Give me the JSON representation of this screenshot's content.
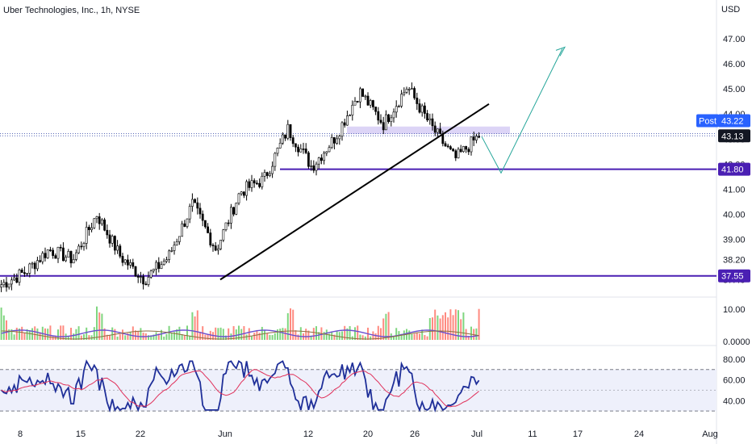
{
  "header": {
    "title": "Uber Technologies, Inc., 1h, NYSE",
    "currency": "USD"
  },
  "colors": {
    "up": "#26a69a",
    "down": "#ef5350",
    "level_line": "#4a1fb3",
    "zone": "#d6ccf5",
    "forecast": "#26a69a",
    "rsi": "#1f2f99",
    "rsi_ma": "#e0315b",
    "rsi_band": "#eef0fb",
    "price_label": "#131722",
    "post_label": "#2962ff"
  },
  "chart_data": [
    {
      "type": "candlestick",
      "title": "Uber Technologies, Inc., 1h, NYSE",
      "x_ticks": [
        "8",
        "15",
        "22",
        "Jun",
        "12",
        "20",
        "26",
        "Jul",
        "11",
        "17",
        "24",
        "Aug"
      ],
      "y_ticks": [
        "47.00",
        "46.00",
        "45.00",
        "44.00",
        "43.00",
        "42.00",
        "41.00",
        "40.00",
        "39.00",
        "38.20",
        "37.40"
      ],
      "ylim": [
        36.8,
        47.9
      ],
      "current_price": "43.13",
      "post_price": "43.22",
      "post_label": "Post",
      "levels": [
        {
          "name": "support",
          "value": 41.8,
          "label": "41.80"
        },
        {
          "name": "low-support",
          "value": 37.55,
          "label": "37.55"
        }
      ],
      "resistance_zone": [
        43.2,
        43.5
      ],
      "trendline": [
        [
          37.4
        ],
        [
          44.4
        ]
      ],
      "forecast": [
        43.1,
        41.65,
        46.6
      ],
      "anchors": [
        {
          "date": "8",
          "value": 37.2
        },
        {
          "date": "12",
          "value": 37.7
        },
        {
          "date": "15",
          "value": 38.6
        },
        {
          "date": "22",
          "value": 38.2
        },
        {
          "date": "22",
          "value": 40.0
        },
        {
          "date": "28",
          "value": 38.3
        },
        {
          "date": "Jun",
          "value": 37.4
        },
        {
          "date": "Jun",
          "value": 38.3
        },
        {
          "date": "5",
          "value": 40.4
        },
        {
          "date": "8",
          "value": 38.6
        },
        {
          "date": "12",
          "value": 40.9
        },
        {
          "date": "15",
          "value": 41.4
        },
        {
          "date": "18",
          "value": 43.4
        },
        {
          "date": "20",
          "value": 41.9
        },
        {
          "date": "23",
          "value": 43.1
        },
        {
          "date": "26",
          "value": 44.9
        },
        {
          "date": "27",
          "value": 43.6
        },
        {
          "date": "28",
          "value": 45.1
        },
        {
          "date": "29",
          "value": 43.5
        },
        {
          "date": "Jul",
          "value": 42.2
        },
        {
          "date": "Jul",
          "value": 43.13
        }
      ]
    },
    {
      "type": "bar",
      "name": "volume",
      "y_ticks": [
        "10.00",
        "0.0000"
      ]
    },
    {
      "type": "line",
      "name": "rsi",
      "y_ticks": [
        "80.00",
        "60.00",
        "40.00"
      ],
      "ylim": [
        20,
        90
      ],
      "band": [
        30,
        70
      ],
      "midline": 50
    }
  ]
}
